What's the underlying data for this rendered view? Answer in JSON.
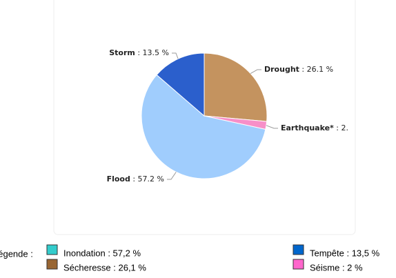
{
  "chart_data": {
    "type": "pie",
    "categories": [
      "Drought",
      "Earthquake*",
      "Flood",
      "Storm"
    ],
    "values": [
      26.1,
      2,
      57.2,
      13.5
    ],
    "value_labels": [
      "26.1 %",
      "2.",
      "57.2 %",
      "13.5 %"
    ],
    "label_separator": " : ",
    "colors": [
      "#c4935f",
      "#f78fc8",
      "#a0cdfd",
      "#2b5fcc"
    ],
    "legend": {
      "title": "Légende :",
      "items": [
        {
          "label": "Inondation : 57,2 %",
          "color": "#33cccc"
        },
        {
          "label": "Sécheresse : 26,1 %",
          "color": "#996633"
        },
        {
          "label": "Tempête : 13,5 %",
          "color": "#0066cc"
        },
        {
          "label": "Séisme : 2 %",
          "color": "#ff66cc"
        }
      ]
    }
  }
}
